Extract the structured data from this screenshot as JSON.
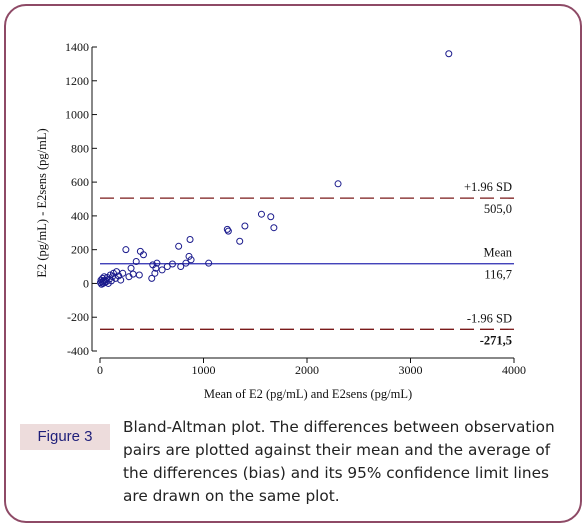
{
  "figure_label": "Figure 3",
  "caption": "Bland-Altman plot. The differences between observation pairs are plotted against their mean and the average of the differences (bias) and its 95% confidence limit lines are drawn on the same plot.",
  "colors": {
    "border": "#8e4a66",
    "label_bg": "#eddcdc",
    "label_text": "#1f1f7a",
    "mean_line": "#2a2ab0",
    "sd_line": "#7a1a1a",
    "points": "#1a1a8c"
  },
  "chart_data": {
    "type": "scatter",
    "xlabel": "Mean of E2 (pg/mL) and E2sens (pg/mL)",
    "ylabel": "E2 (pg/mL) - E2sens (pg/mL)",
    "xlim": [
      0,
      4000
    ],
    "ylim": [
      -400,
      1400
    ],
    "xticks": [
      0,
      1000,
      2000,
      3000,
      4000
    ],
    "yticks": [
      -400,
      -200,
      0,
      200,
      400,
      600,
      800,
      1000,
      1200,
      1400
    ],
    "grid": false,
    "reference_lines": [
      {
        "name": "+1.96 SD",
        "value": 505.0,
        "value_label": "505,0",
        "style": "dashed"
      },
      {
        "name": "Mean",
        "value": 116.7,
        "value_label": "116,7",
        "style": "solid"
      },
      {
        "name": "-1.96 SD",
        "value": -271.5,
        "value_label": "-271,5",
        "style": "dashed"
      }
    ],
    "points": [
      [
        5,
        5
      ],
      [
        10,
        20
      ],
      [
        15,
        -5
      ],
      [
        20,
        10
      ],
      [
        25,
        30
      ],
      [
        30,
        0
      ],
      [
        35,
        15
      ],
      [
        40,
        40
      ],
      [
        45,
        5
      ],
      [
        50,
        20
      ],
      [
        60,
        10
      ],
      [
        70,
        35
      ],
      [
        80,
        0
      ],
      [
        90,
        25
      ],
      [
        100,
        50
      ],
      [
        110,
        15
      ],
      [
        120,
        40
      ],
      [
        130,
        60
      ],
      [
        150,
        30
      ],
      [
        160,
        70
      ],
      [
        180,
        45
      ],
      [
        200,
        20
      ],
      [
        220,
        60
      ],
      [
        250,
        200
      ],
      [
        280,
        40
      ],
      [
        300,
        90
      ],
      [
        320,
        55
      ],
      [
        350,
        130
      ],
      [
        380,
        50
      ],
      [
        390,
        190
      ],
      [
        420,
        170
      ],
      [
        500,
        30
      ],
      [
        510,
        110
      ],
      [
        530,
        60
      ],
      [
        540,
        90
      ],
      [
        550,
        120
      ],
      [
        600,
        80
      ],
      [
        650,
        100
      ],
      [
        700,
        115
      ],
      [
        760,
        220
      ],
      [
        780,
        100
      ],
      [
        830,
        120
      ],
      [
        860,
        160
      ],
      [
        870,
        260
      ],
      [
        880,
        140
      ],
      [
        1050,
        120
      ],
      [
        1230,
        320
      ],
      [
        1240,
        310
      ],
      [
        1350,
        250
      ],
      [
        1400,
        340
      ],
      [
        1560,
        410
      ],
      [
        1650,
        395
      ],
      [
        1680,
        330
      ],
      [
        2300,
        590
      ],
      [
        3370,
        1360
      ]
    ]
  }
}
